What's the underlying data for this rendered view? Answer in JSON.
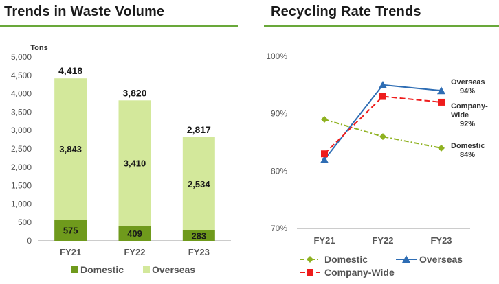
{
  "chart_data": [
    {
      "type": "bar",
      "stacked": true,
      "title": "Trends in Waste Volume",
      "ylabel": "Tons",
      "ylim": [
        0,
        5000
      ],
      "yticks": [
        "0",
        "500",
        "1,000",
        "1,500",
        "2,000",
        "2,500",
        "3,000",
        "3,500",
        "4,000",
        "4,500",
        "5,000"
      ],
      "categories": [
        "FY21",
        "FY22",
        "FY23"
      ],
      "series": [
        {
          "name": "Domestic",
          "values": [
            575,
            409,
            283
          ],
          "labels": [
            "575",
            "409",
            "283"
          ],
          "color": "#6f9a1c"
        },
        {
          "name": "Overseas",
          "values": [
            3843,
            3410,
            2534
          ],
          "labels": [
            "3,843",
            "3,410",
            "2,534"
          ],
          "color": "#d3e89b"
        }
      ],
      "totals": [
        4418,
        3820,
        2817
      ],
      "total_labels": [
        "4,418",
        "3,820",
        "2,817"
      ],
      "legend": "bottom",
      "grid": false
    },
    {
      "type": "line",
      "title": "Recycling Rate Trends",
      "ylim": [
        70,
        100
      ],
      "yticks": [
        "70%",
        "80%",
        "90%",
        "100%"
      ],
      "categories": [
        "FY21",
        "FY22",
        "FY23"
      ],
      "series": [
        {
          "name": "Domestic",
          "values": [
            89,
            86,
            84
          ],
          "color": "#8fb221",
          "marker": "diamond",
          "dash": "dashdot",
          "end_label": [
            "Domestic",
            "84%"
          ]
        },
        {
          "name": "Overseas",
          "values": [
            82,
            95,
            94
          ],
          "color": "#2e6db4",
          "marker": "triangle",
          "dash": "solid",
          "end_label": [
            "Overseas",
            "94%"
          ]
        },
        {
          "name": "Company-Wide",
          "values": [
            83,
            93,
            92
          ],
          "color": "#ee1c1c",
          "marker": "square",
          "dash": "dashed",
          "end_label": [
            "Company-",
            "Wide",
            "92%"
          ]
        }
      ],
      "legend": "bottom",
      "grid": false
    }
  ]
}
